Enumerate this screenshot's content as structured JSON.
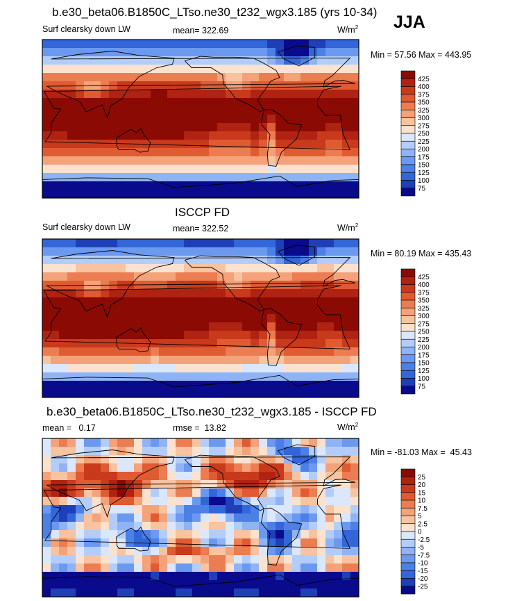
{
  "season": "JJA",
  "colors": {
    "abs_scale": [
      "#0a0a8c",
      "#1f3fb8",
      "#3366d9",
      "#4d80e6",
      "#6b99f0",
      "#8fb3f5",
      "#b3cdfa",
      "#dbe7fc",
      "#fbe2cf",
      "#f7c3a1",
      "#f4a279",
      "#ec7c51",
      "#e05a32",
      "#c9391c",
      "#b02212",
      "#8b0a04"
    ],
    "diff_scale": [
      "#0a0a8c",
      "#1f3fb8",
      "#3366d9",
      "#4d80e6",
      "#6b99f0",
      "#8fb3f5",
      "#b3cdfa",
      "#dbe7fc",
      "#fbe2cf",
      "#f7c3a1",
      "#f4a279",
      "#ec7c51",
      "#e05a32",
      "#c9391c",
      "#b02212",
      "#8b0a04"
    ],
    "land_outline": "#000000"
  },
  "chart_data": [
    {
      "type": "heatmap",
      "title": "b.e30_beta06.B1850C_LTso.ne30_t232_wgx3.185 (yrs 10-34)",
      "left_label": "Surf clearsky down LW",
      "stat_label": "mean= 322.69",
      "units": "W/m",
      "units_exp": "2",
      "minmax": "Min =  57.56 Max = 443.95",
      "colorbar_labels": [
        "425",
        "400",
        "375",
        "350",
        "325",
        "300",
        "275",
        "250",
        "225",
        "200",
        "175",
        "150",
        "125",
        "100",
        "75"
      ],
      "mean": 322.69,
      "min": 57.56,
      "max": 443.95
    },
    {
      "type": "heatmap",
      "title": "ISCCP FD",
      "left_label": "Surf clearsky down LW",
      "stat_label": "mean= 322.52",
      "units": "W/m",
      "units_exp": "2",
      "minmax": "Min =  80.19 Max = 435.43",
      "colorbar_labels": [
        "425",
        "400",
        "375",
        "350",
        "325",
        "300",
        "275",
        "250",
        "225",
        "200",
        "175",
        "150",
        "125",
        "100",
        "75"
      ],
      "mean": 322.52,
      "min": 80.19,
      "max": 435.43
    },
    {
      "type": "heatmap",
      "title": "b.e30_beta06.B1850C_LTso.ne30_t232_wgx3.185 - ISCCP FD",
      "left_label": "mean =   0.17",
      "stat_label": "rmse =  13.82",
      "units": "W/m",
      "units_exp": "2",
      "minmax": "Min = -81.03 Max =  45.43",
      "colorbar_labels": [
        "25",
        "20",
        "15",
        "10",
        "7.5",
        "5",
        "2.5",
        "0",
        "-2.5",
        "-5",
        "-7.5",
        "-10",
        "-15",
        "-20",
        "-25"
      ],
      "mean": 0.17,
      "rmse": 13.82,
      "min": -81.03,
      "max": 45.43
    }
  ]
}
